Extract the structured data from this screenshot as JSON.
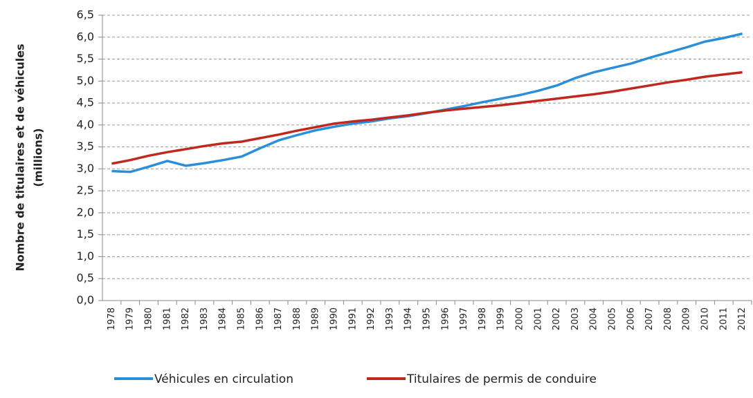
{
  "chart_data": {
    "type": "line",
    "y_label": [
      "Nombre de titulaires et de véhicules",
      "(millions)"
    ],
    "categories": [
      "1978",
      "1979",
      "1980",
      "1981",
      "1982",
      "1983",
      "1984",
      "1985",
      "1986",
      "1987",
      "1988",
      "1989",
      "1990",
      "1991",
      "1992",
      "1993",
      "1994",
      "1995",
      "1996",
      "1997",
      "1998",
      "1999",
      "2000",
      "2001",
      "2002",
      "2003",
      "2004",
      "2005",
      "2006",
      "2007",
      "2008",
      "2009",
      "2010",
      "2011",
      "2012"
    ],
    "series": [
      {
        "name": "Véhicules en circulation",
        "color": "#2a8fd8",
        "values": [
          2.95,
          2.93,
          3.05,
          3.18,
          3.07,
          3.13,
          3.2,
          3.28,
          3.47,
          3.65,
          3.77,
          3.88,
          3.96,
          4.03,
          4.08,
          4.15,
          4.2,
          4.27,
          4.35,
          4.43,
          4.52,
          4.6,
          4.68,
          4.78,
          4.9,
          5.07,
          5.2,
          5.3,
          5.4,
          5.53,
          5.65,
          5.77,
          5.9,
          5.98,
          6.08
        ]
      },
      {
        "name": "Titulaires de permis de conduire",
        "color": "#c0281e",
        "values": [
          3.12,
          3.2,
          3.3,
          3.38,
          3.45,
          3.52,
          3.58,
          3.62,
          3.7,
          3.78,
          3.87,
          3.95,
          4.03,
          4.08,
          4.12,
          4.17,
          4.22,
          4.28,
          4.33,
          4.37,
          4.41,
          4.45,
          4.5,
          4.55,
          4.6,
          4.65,
          4.7,
          4.76,
          4.83,
          4.9,
          4.97,
          5.03,
          5.1,
          5.15,
          5.2
        ]
      }
    ],
    "ylim": [
      0,
      6.5
    ],
    "yticks": [
      {
        "value": 0,
        "label": "0,0"
      },
      {
        "value": 0.5,
        "label": "0,5"
      },
      {
        "value": 1,
        "label": "1,0"
      },
      {
        "value": 1.5,
        "label": "1,5"
      },
      {
        "value": 2,
        "label": "2,0"
      },
      {
        "value": 2.5,
        "label": "2,5"
      },
      {
        "value": 3,
        "label": "3,0"
      },
      {
        "value": 3.5,
        "label": "3,5"
      },
      {
        "value": 4,
        "label": "4,0"
      },
      {
        "value": 4.5,
        "label": "4,5"
      },
      {
        "value": 5,
        "label": "5,0"
      },
      {
        "value": 5.5,
        "label": "5,5"
      },
      {
        "value": 6,
        "label": "6,0"
      },
      {
        "value": 6.5,
        "label": "6,5"
      }
    ],
    "grid": true,
    "legend": "bottom"
  }
}
